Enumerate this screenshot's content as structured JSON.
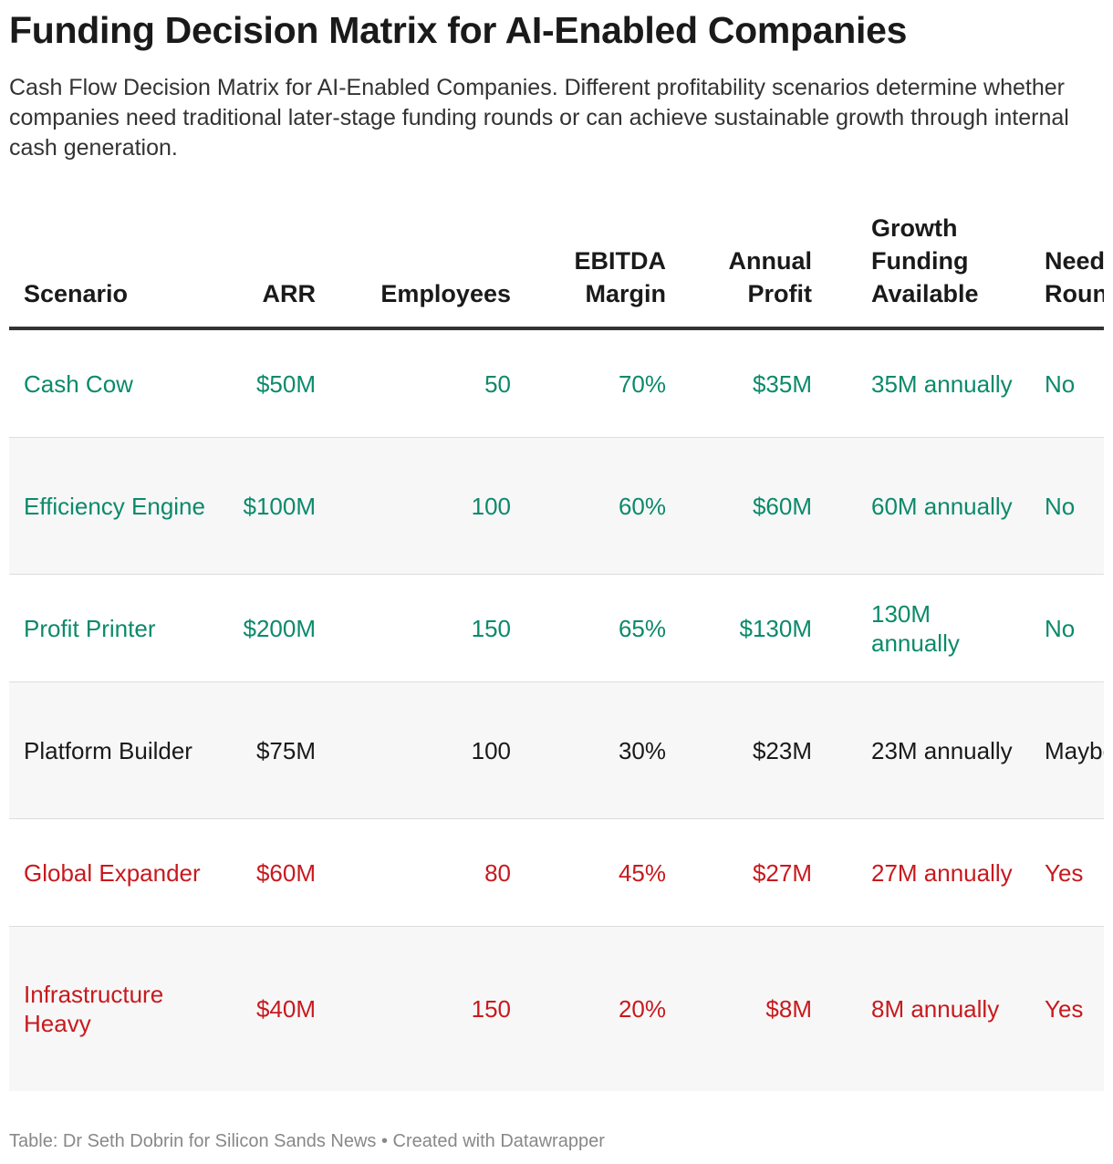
{
  "title": "Funding Decision Matrix for AI-Enabled Companies",
  "subtitle": "Cash Flow Decision Matrix for AI-Enabled Companies. Different profitability scenarios determine whether companies need traditional later-stage funding rounds or can achieve sustainable growth through internal cash generation.",
  "colors": {
    "green": "#0b8a6b",
    "neutral": "#1a1a1a",
    "red": "#c8191e"
  },
  "chart_data": {
    "type": "table",
    "columns": [
      "Scenario",
      "ARR",
      "Employees",
      "EBITDA Margin",
      "Annual Profit",
      "Growth Funding Available",
      "Need Later Rounds?"
    ],
    "rows": [
      {
        "scenario": "Cash Cow",
        "arr": "$50M",
        "employees": "50",
        "ebitda": "70%",
        "profit": "$35M",
        "growth": "35M annually",
        "need": "No",
        "tone": "green"
      },
      {
        "scenario": "Efficiency Engine",
        "arr": "$100M",
        "employees": "100",
        "ebitda": "60%",
        "profit": "$60M",
        "growth": "60M annually",
        "need": "No",
        "tone": "green"
      },
      {
        "scenario": "Profit Printer",
        "arr": "$200M",
        "employees": "150",
        "ebitda": "65%",
        "profit": "$130M",
        "growth": "130M annually",
        "need": "No",
        "tone": "green"
      },
      {
        "scenario": "Platform Builder",
        "arr": "$75M",
        "employees": "100",
        "ebitda": "30%",
        "profit": "$23M",
        "growth": "23M annually",
        "need": "Maybe",
        "tone": "neutral"
      },
      {
        "scenario": "Global Expander",
        "arr": "$60M",
        "employees": "80",
        "ebitda": "45%",
        "profit": "$27M",
        "growth": "27M annually",
        "need": "Yes",
        "tone": "red"
      },
      {
        "scenario": "Infrastructure Heavy",
        "arr": "$40M",
        "employees": "150",
        "ebitda": "20%",
        "profit": "$8M",
        "growth": "8M annually",
        "need": "Yes",
        "tone": "red"
      }
    ]
  },
  "footer": "Table: Dr Seth Dobrin for Silicon Sands News • Created with Datawrapper"
}
